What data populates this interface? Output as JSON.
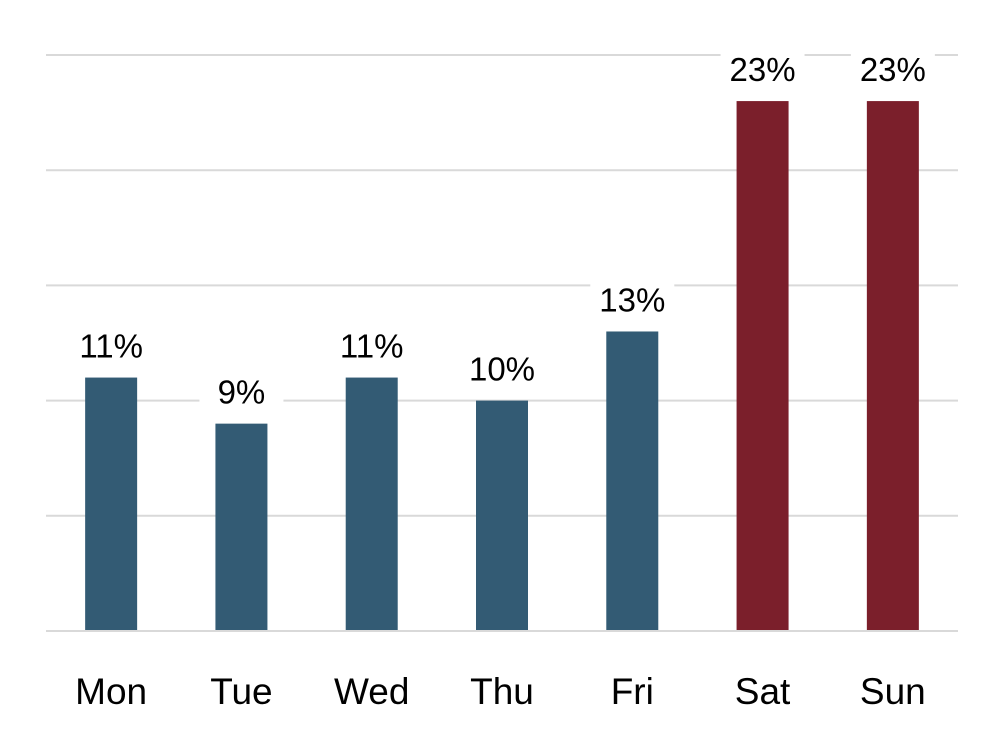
{
  "chart_data": {
    "type": "bar",
    "title": "",
    "xlabel": "",
    "ylabel": "",
    "categories": [
      "Mon",
      "Tue",
      "Wed",
      "Thu",
      "Fri",
      "Sat",
      "Sun"
    ],
    "values": [
      11,
      9,
      11,
      10,
      13,
      23,
      23
    ],
    "value_format": "{v}%",
    "ylim": [
      0,
      25
    ],
    "grid": true,
    "legend": "none",
    "colors": {
      "weekday": "#335b74",
      "weekend": "#7b1f2b",
      "grid": "#d9d9d9"
    },
    "bar_colors": [
      "weekday",
      "weekday",
      "weekday",
      "weekday",
      "weekday",
      "weekend",
      "weekend"
    ]
  }
}
